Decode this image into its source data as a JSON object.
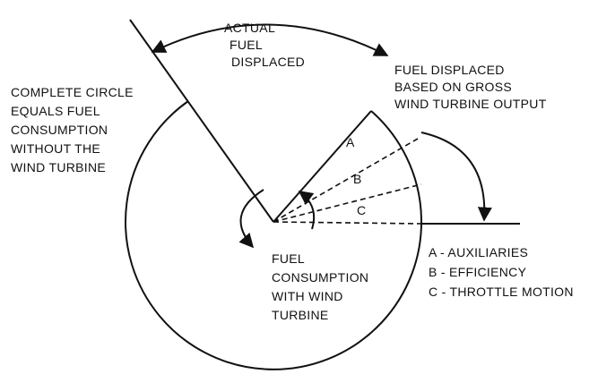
{
  "labels": {
    "actual_fuel_displaced": [
      "ACTUAL",
      "FUEL",
      "DISPLACED"
    ],
    "gross_output": [
      "FUEL DISPLACED",
      "BASED ON GROSS",
      "WIND TURBINE OUTPUT"
    ],
    "complete_circle": [
      "COMPLETE CIRCLE",
      "EQUALS FUEL",
      "CONSUMPTION",
      "WITHOUT THE",
      "WIND TURBINE"
    ],
    "with_turbine": [
      "FUEL",
      "CONSUMPTION",
      "WITH WIND",
      "TURBINE"
    ]
  },
  "segments": [
    "A",
    "B",
    "C"
  ],
  "legend": [
    "A - AUXILIARIES",
    "B - EFFICIENCY",
    "C - THROTTLE MOTION"
  ]
}
